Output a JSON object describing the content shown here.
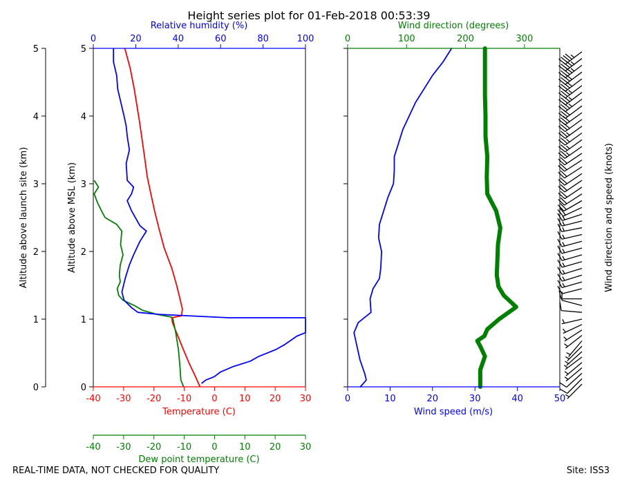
{
  "title": "Height series plot for 01-Feb-2018 00:53:39",
  "footer": {
    "left": "REAL-TIME DATA, NOT CHECKED FOR QUALITY",
    "right": "Site: ISS3"
  },
  "colors": {
    "temperature": "#ff0000",
    "dewpoint": "#008000",
    "humidity": "#0000ff",
    "wind_speed": "#0000ff",
    "wind_direction": "#008000",
    "barbs": "#000000"
  },
  "chart_data": [
    {
      "type": "line",
      "panel": "thermodynamic",
      "ylabel_outer": "Altitude above launch site (km)",
      "ylabel_inner": "Altitude above MSL (km)",
      "xlabel_bottom": "Temperature (C)",
      "xlabel_lower": "Dew point temperature (C)",
      "xlabel_top": "Relative humidity (%)",
      "ylim": [
        0,
        5
      ],
      "yticks": [
        0,
        1,
        2,
        3,
        4,
        5
      ],
      "temp_xlim": [
        -40,
        30
      ],
      "temp_xticks": [
        -40,
        -30,
        -20,
        -10,
        0,
        10,
        20,
        30
      ],
      "rh_xlim": [
        0,
        100
      ],
      "rh_xticks": [
        0,
        20,
        40,
        60,
        80,
        100
      ],
      "series": [
        {
          "key": "temperature",
          "axis": "temp",
          "points": [
            [
              -4.8,
              0
            ],
            [
              -6.3,
              0.15
            ],
            [
              -8.4,
              0.35
            ],
            [
              -10.3,
              0.55
            ],
            [
              -12.1,
              0.75
            ],
            [
              -13.9,
              0.95
            ],
            [
              -14.1,
              1.02
            ],
            [
              -10.9,
              1.05
            ],
            [
              -10.6,
              1.15
            ],
            [
              -11.4,
              1.3
            ],
            [
              -12.5,
              1.5
            ],
            [
              -14.1,
              1.75
            ],
            [
              -16.6,
              2.05
            ],
            [
              -18.4,
              2.35
            ],
            [
              -19.8,
              2.6
            ],
            [
              -21.0,
              2.85
            ],
            [
              -22.2,
              3.1
            ],
            [
              -23.1,
              3.4
            ],
            [
              -23.9,
              3.65
            ],
            [
              -24.7,
              3.9
            ],
            [
              -25.6,
              4.15
            ],
            [
              -26.5,
              4.4
            ],
            [
              -27.8,
              4.7
            ],
            [
              -29.6,
              5.0
            ]
          ]
        },
        {
          "key": "dewpoint",
          "axis": "temp",
          "points": [
            [
              -10.2,
              0
            ],
            [
              -11.1,
              0.1
            ],
            [
              -11.4,
              0.3
            ],
            [
              -11.9,
              0.55
            ],
            [
              -12.8,
              0.8
            ],
            [
              -13.7,
              1.0
            ],
            [
              -14.1,
              1.03
            ],
            [
              -19.0,
              1.07
            ],
            [
              -23.7,
              1.13
            ],
            [
              -26.4,
              1.2
            ],
            [
              -30.2,
              1.28
            ],
            [
              -31.6,
              1.35
            ],
            [
              -32.1,
              1.45
            ],
            [
              -31.1,
              1.55
            ],
            [
              -31.4,
              1.65
            ],
            [
              -31.1,
              1.8
            ],
            [
              -30.2,
              1.95
            ],
            [
              -31.0,
              2.1
            ],
            [
              -30.6,
              2.3
            ],
            [
              -32.3,
              2.4
            ],
            [
              -36.1,
              2.5
            ],
            [
              -37.3,
              2.6
            ],
            [
              -38.6,
              2.72
            ],
            [
              -39.7,
              2.85
            ],
            [
              -38.3,
              2.95
            ],
            [
              -39.7,
              3.05
            ]
          ]
        },
        {
          "key": "humidity",
          "axis": "rh",
          "points": [
            [
              100,
              0.8
            ],
            [
              96,
              0.75
            ],
            [
              90,
              0.62
            ],
            [
              86,
              0.55
            ],
            [
              78,
              0.45
            ],
            [
              74,
              0.38
            ],
            [
              66,
              0.3
            ],
            [
              60,
              0.22
            ],
            [
              57,
              0.15
            ],
            [
              53,
              0.1
            ],
            [
              51,
              0.05
            ],
            [
              64,
              1.02
            ],
            [
              31,
              1.07
            ],
            [
              21,
              1.1
            ],
            [
              18,
              1.17
            ],
            [
              14.5,
              1.28
            ],
            [
              13.5,
              1.4
            ],
            [
              15,
              1.6
            ],
            [
              17,
              1.8
            ],
            [
              19,
              1.95
            ],
            [
              22,
              2.15
            ],
            [
              25,
              2.3
            ],
            [
              22,
              2.38
            ],
            [
              18,
              2.6
            ],
            [
              16,
              2.75
            ],
            [
              18,
              2.85
            ],
            [
              19,
              2.95
            ],
            [
              16,
              3.05
            ],
            [
              15.5,
              3.3
            ],
            [
              17,
              3.5
            ],
            [
              16,
              3.7
            ],
            [
              15.5,
              3.85
            ],
            [
              14.5,
              4.0
            ],
            [
              13,
              4.2
            ],
            [
              11.5,
              4.4
            ],
            [
              11,
              4.6
            ],
            [
              9.5,
              4.8
            ],
            [
              9.5,
              5.0
            ]
          ]
        }
      ]
    },
    {
      "type": "line",
      "panel": "wind",
      "xlabel_bottom": "Wind speed (m/s)",
      "xlabel_top": "Wind direction (degrees)",
      "ylabel_right": "Wind direction and speed (knots)",
      "ylim": [
        0,
        5
      ],
      "speed_xlim": [
        0,
        50
      ],
      "speed_xticks": [
        0,
        10,
        20,
        30,
        40,
        50
      ],
      "dir_xlim": [
        0,
        360
      ],
      "dir_xticks": [
        0,
        100,
        200,
        300
      ],
      "series": [
        {
          "key": "wind_speed",
          "axis": "speed",
          "points": [
            [
              3,
              0
            ],
            [
              4.4,
              0.1
            ],
            [
              4.0,
              0.2
            ],
            [
              2.9,
              0.4
            ],
            [
              2.2,
              0.6
            ],
            [
              1.5,
              0.8
            ],
            [
              2.5,
              0.95
            ],
            [
              5.5,
              1.1
            ],
            [
              5.3,
              1.3
            ],
            [
              6.0,
              1.45
            ],
            [
              7.5,
              1.6
            ],
            [
              7.8,
              1.75
            ],
            [
              8.0,
              2.0
            ],
            [
              7.3,
              2.2
            ],
            [
              7.5,
              2.4
            ],
            [
              8.5,
              2.6
            ],
            [
              9.5,
              2.8
            ],
            [
              10.8,
              3.0
            ],
            [
              11.0,
              3.2
            ],
            [
              11.0,
              3.4
            ],
            [
              12.0,
              3.6
            ],
            [
              13.0,
              3.8
            ],
            [
              14.5,
              4.0
            ],
            [
              16.0,
              4.2
            ],
            [
              18.0,
              4.4
            ],
            [
              20.0,
              4.6
            ],
            [
              22.5,
              4.8
            ],
            [
              24.5,
              5.0
            ]
          ]
        },
        {
          "key": "wind_direction",
          "axis": "dir",
          "points": [
            [
              225,
              0
            ],
            [
              225,
              0.25
            ],
            [
              233,
              0.45
            ],
            [
              225,
              0.6
            ],
            [
              220,
              0.68
            ],
            [
              232,
              0.75
            ],
            [
              237,
              0.85
            ],
            [
              257,
              1.0
            ],
            [
              286,
              1.18
            ],
            [
              265,
              1.35
            ],
            [
              256,
              1.48
            ],
            [
              253,
              1.65
            ],
            [
              254,
              1.85
            ],
            [
              255,
              2.1
            ],
            [
              259,
              2.35
            ],
            [
              252,
              2.6
            ],
            [
              237,
              2.85
            ],
            [
              236,
              3.1
            ],
            [
              237,
              3.4
            ],
            [
              234,
              3.7
            ],
            [
              234,
              4.0
            ],
            [
              233,
              4.3
            ],
            [
              233,
              4.6
            ],
            [
              233,
              5.0
            ]
          ]
        }
      ],
      "barbs": [
        {
          "alt": 0.04,
          "spd": 6,
          "dir": 225
        },
        {
          "alt": 0.12,
          "spd": 8,
          "dir": 225
        },
        {
          "alt": 0.2,
          "spd": 8,
          "dir": 228
        },
        {
          "alt": 0.28,
          "spd": 7,
          "dir": 230
        },
        {
          "alt": 0.36,
          "spd": 6,
          "dir": 230
        },
        {
          "alt": 0.44,
          "spd": 5,
          "dir": 233
        },
        {
          "alt": 0.52,
          "spd": 4,
          "dir": 228
        },
        {
          "alt": 0.6,
          "spd": 4,
          "dir": 225
        },
        {
          "alt": 0.68,
          "spd": 3,
          "dir": 220
        },
        {
          "alt": 0.76,
          "spd": 3,
          "dir": 232
        },
        {
          "alt": 0.84,
          "spd": 4,
          "dir": 237
        },
        {
          "alt": 0.92,
          "spd": 5,
          "dir": 245
        },
        {
          "alt": 1.0,
          "spd": 7,
          "dir": 257
        },
        {
          "alt": 1.1,
          "spd": 10,
          "dir": 275
        },
        {
          "alt": 1.2,
          "spd": 11,
          "dir": 285
        },
        {
          "alt": 1.3,
          "spd": 11,
          "dir": 270
        },
        {
          "alt": 1.45,
          "spd": 12,
          "dir": 256
        },
        {
          "alt": 1.55,
          "spd": 14,
          "dir": 254
        },
        {
          "alt": 1.65,
          "spd": 15,
          "dir": 253
        },
        {
          "alt": 1.75,
          "spd": 15,
          "dir": 253
        },
        {
          "alt": 1.85,
          "spd": 15,
          "dir": 254
        },
        {
          "alt": 1.95,
          "spd": 15,
          "dir": 254
        },
        {
          "alt": 2.05,
          "spd": 15,
          "dir": 255
        },
        {
          "alt": 2.15,
          "spd": 14,
          "dir": 255
        },
        {
          "alt": 2.25,
          "spd": 14,
          "dir": 257
        },
        {
          "alt": 2.35,
          "spd": 15,
          "dir": 259
        },
        {
          "alt": 2.45,
          "spd": 16,
          "dir": 256
        },
        {
          "alt": 2.55,
          "spd": 17,
          "dir": 252
        },
        {
          "alt": 2.65,
          "spd": 18,
          "dir": 245
        },
        {
          "alt": 2.75,
          "spd": 19,
          "dir": 240
        },
        {
          "alt": 2.85,
          "spd": 20,
          "dir": 237
        },
        {
          "alt": 2.95,
          "spd": 21,
          "dir": 236
        },
        {
          "alt": 3.05,
          "spd": 21,
          "dir": 236
        },
        {
          "alt": 3.15,
          "spd": 21,
          "dir": 236
        },
        {
          "alt": 3.25,
          "spd": 21,
          "dir": 237
        },
        {
          "alt": 3.35,
          "spd": 21,
          "dir": 237
        },
        {
          "alt": 3.45,
          "spd": 22,
          "dir": 236
        },
        {
          "alt": 3.55,
          "spd": 23,
          "dir": 235
        },
        {
          "alt": 3.65,
          "spd": 24,
          "dir": 234
        },
        {
          "alt": 3.75,
          "spd": 25,
          "dir": 234
        },
        {
          "alt": 3.85,
          "spd": 26,
          "dir": 234
        },
        {
          "alt": 3.95,
          "spd": 28,
          "dir": 234
        },
        {
          "alt": 4.05,
          "spd": 29,
          "dir": 234
        },
        {
          "alt": 4.15,
          "spd": 31,
          "dir": 233
        },
        {
          "alt": 4.25,
          "spd": 33,
          "dir": 233
        },
        {
          "alt": 4.35,
          "spd": 35,
          "dir": 233
        },
        {
          "alt": 4.45,
          "spd": 37,
          "dir": 233
        },
        {
          "alt": 4.55,
          "spd": 39,
          "dir": 233
        },
        {
          "alt": 4.65,
          "spd": 41,
          "dir": 233
        },
        {
          "alt": 4.75,
          "spd": 43,
          "dir": 233
        },
        {
          "alt": 4.85,
          "spd": 45,
          "dir": 233
        },
        {
          "alt": 4.95,
          "spd": 47,
          "dir": 233
        }
      ]
    }
  ]
}
